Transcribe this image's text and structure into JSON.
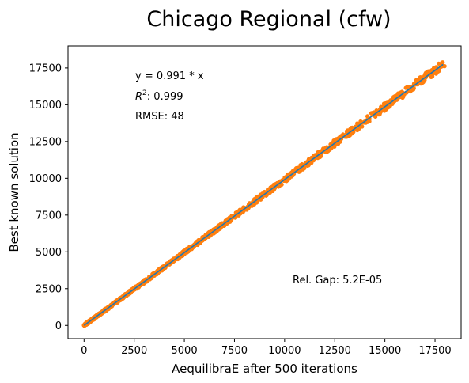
{
  "chart_data": {
    "type": "scatter",
    "title": "Chicago Regional (cfw)",
    "xlabel": "AequilibraE after 500 iterations",
    "ylabel": "Best known solution",
    "xlim": [
      -800,
      18800
    ],
    "ylim": [
      -900,
      19000
    ],
    "xticks": [
      0,
      2500,
      5000,
      7500,
      10000,
      12500,
      15000,
      17500
    ],
    "yticks": [
      0,
      2500,
      5000,
      7500,
      10000,
      12500,
      15000,
      17500
    ],
    "grid": false,
    "fit_line": {
      "slope": 0.991,
      "x_range": [
        0,
        17900
      ],
      "color": "#1f77b4"
    },
    "scatter_color": "#ff7f0e",
    "point_x_range": [
      0,
      18000
    ],
    "annotations": {
      "equation": "y = 0.991 * x",
      "r2_label": "R",
      "r2_exponent": "2",
      "r2_value": ":  0.999",
      "rmse": "RMSE: 48",
      "rel_gap": "Rel. Gap: 5.2E-05"
    }
  }
}
